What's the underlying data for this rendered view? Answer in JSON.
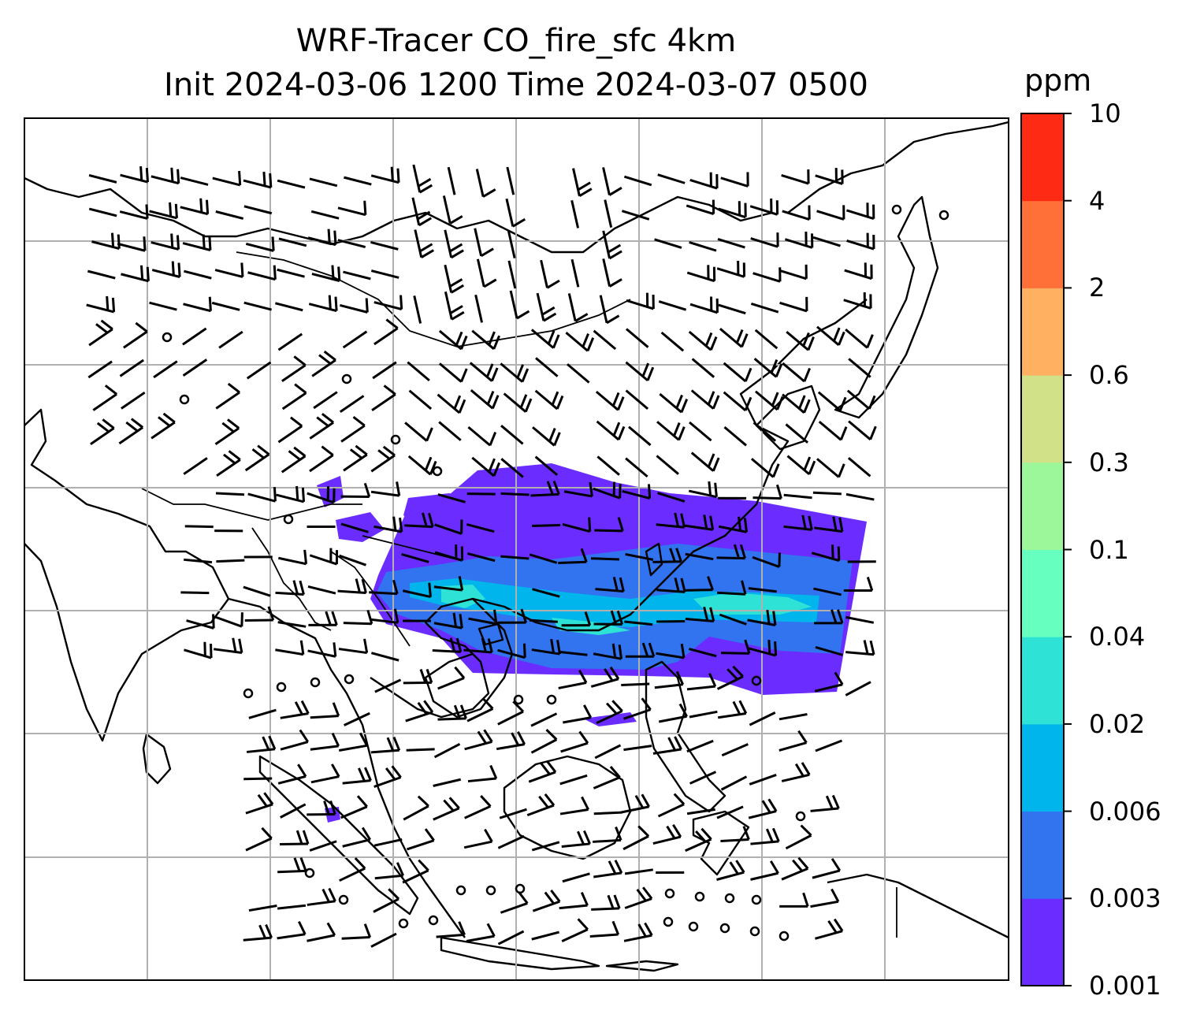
{
  "title": {
    "line1": "WRF-Tracer CO_fire_sfc 4km",
    "line2": "Init 2024-03-06 1200 Time 2024-03-07 0500"
  },
  "colorbar": {
    "unit": "ppm",
    "levels": [
      "0.001",
      "0.003",
      "0.006",
      "0.02",
      "0.04",
      "0.1",
      "0.3",
      "0.6",
      "2",
      "4",
      "10"
    ],
    "colors": [
      "#6a2cff",
      "#3273f0",
      "#00b4ec",
      "#2ee3d6",
      "#66ffbf",
      "#9cf79a",
      "#d0e187",
      "#ffb061",
      "#ff7038",
      "#ff2a14"
    ]
  },
  "map": {
    "gridlines": true,
    "plume_colors": {
      "lowest": "#6a2cff",
      "low": "#3273f0",
      "mid": "#00b4ec",
      "upper": "#2ee3d6"
    },
    "features": [
      "coastlines",
      "country-borders",
      "wind-barbs",
      "calm-wind-circles",
      "co-fire-plume"
    ]
  }
}
